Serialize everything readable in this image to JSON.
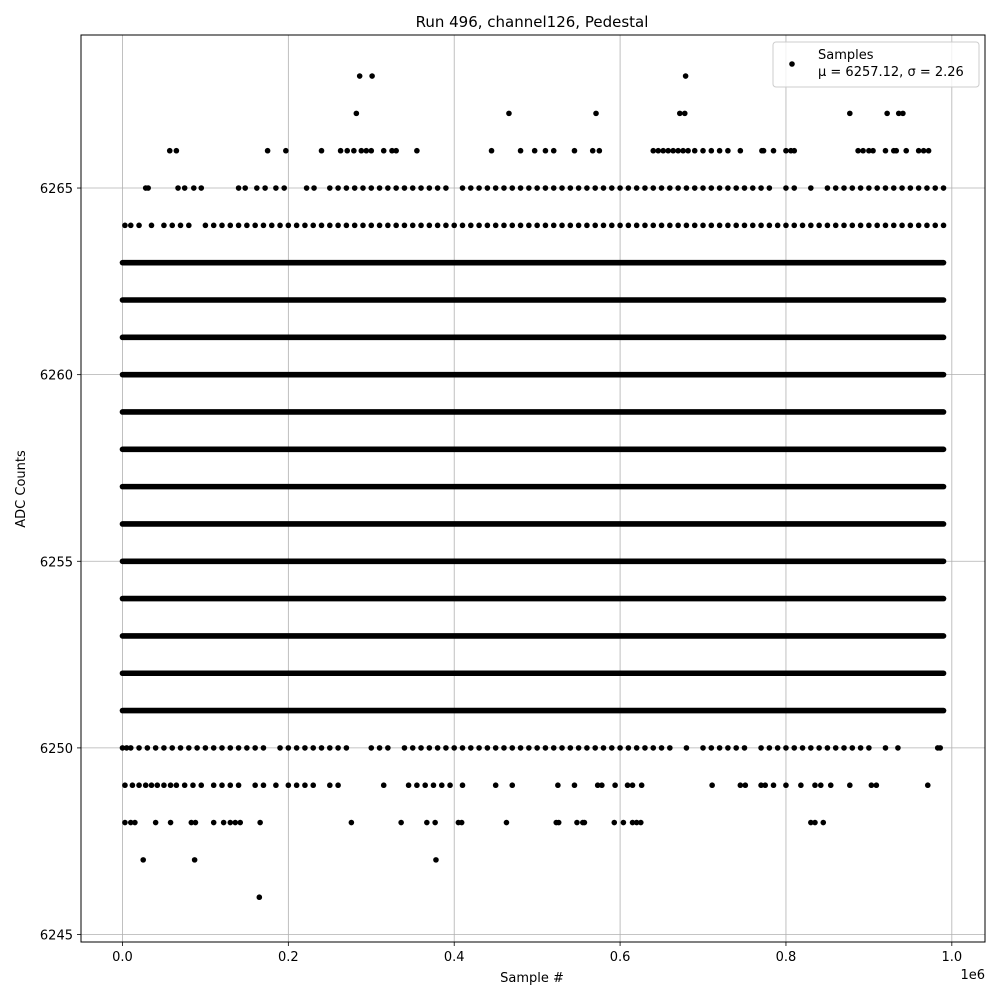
{
  "chart_data": {
    "type": "scatter",
    "title": "Run 496, channel126, Pedestal",
    "xlabel": "Sample #",
    "ylabel": "ADC Counts",
    "x_offset_label": "1e6",
    "xlim": [
      -0.05,
      1.04
    ],
    "ylim": [
      6244.8,
      6269.1
    ],
    "x_ticks": [
      0.0,
      0.2,
      0.4,
      0.6,
      0.8,
      1.0
    ],
    "x_tick_labels": [
      "0.0",
      "0.2",
      "0.4",
      "0.6",
      "0.8",
      "1.0"
    ],
    "y_ticks": [
      6245,
      6250,
      6255,
      6260,
      6265
    ],
    "y_tick_labels": [
      "6245",
      "6250",
      "6255",
      "6260",
      "6265"
    ],
    "grid": true,
    "legend": {
      "placement": "top-right",
      "label": "Samples",
      "stats": "μ = 6257.12, σ = 2.26"
    },
    "marker_color": "#000000",
    "dense_levels": {
      "x_range": [
        0.0,
        0.99
      ],
      "y_values": [
        6251,
        6252,
        6253,
        6254,
        6255,
        6256,
        6257,
        6258,
        6259,
        6260,
        6261,
        6262,
        6263
      ]
    },
    "sparse_levels": [
      {
        "y": 6264,
        "x": [
          0.003,
          0.01,
          0.02,
          0.035,
          0.05,
          0.06,
          0.07,
          0.08,
          0.1,
          0.11,
          0.12,
          0.13,
          0.14,
          0.15,
          0.16,
          0.17,
          0.18,
          0.19,
          0.2,
          0.21,
          0.22,
          0.23,
          0.24,
          0.25,
          0.26,
          0.27,
          0.28,
          0.29,
          0.3,
          0.31,
          0.32,
          0.33,
          0.34,
          0.35,
          0.36,
          0.37,
          0.38,
          0.39,
          0.4,
          0.41,
          0.42,
          0.43,
          0.44,
          0.45,
          0.46,
          0.47,
          0.48,
          0.49,
          0.5,
          0.51,
          0.52,
          0.53,
          0.54,
          0.55,
          0.56,
          0.57,
          0.58,
          0.59,
          0.6,
          0.61,
          0.62,
          0.63,
          0.64,
          0.65,
          0.66,
          0.67,
          0.68,
          0.69,
          0.7,
          0.71,
          0.72,
          0.73,
          0.74,
          0.75,
          0.76,
          0.77,
          0.78,
          0.79,
          0.8,
          0.81,
          0.82,
          0.83,
          0.84,
          0.85,
          0.86,
          0.87,
          0.88,
          0.89,
          0.9,
          0.91,
          0.92,
          0.93,
          0.94,
          0.95,
          0.96,
          0.97,
          0.98,
          0.99
        ]
      },
      {
        "y": 6265,
        "x": [
          0.028,
          0.031,
          0.067,
          0.075,
          0.086,
          0.095,
          0.14,
          0.148,
          0.162,
          0.172,
          0.185,
          0.195,
          0.222,
          0.231,
          0.25,
          0.26,
          0.27,
          0.28,
          0.29,
          0.3,
          0.31,
          0.32,
          0.33,
          0.34,
          0.35,
          0.36,
          0.37,
          0.38,
          0.39,
          0.41,
          0.42,
          0.43,
          0.44,
          0.45,
          0.46,
          0.47,
          0.48,
          0.49,
          0.5,
          0.51,
          0.52,
          0.53,
          0.54,
          0.55,
          0.56,
          0.57,
          0.58,
          0.59,
          0.6,
          0.61,
          0.62,
          0.63,
          0.64,
          0.65,
          0.66,
          0.67,
          0.68,
          0.69,
          0.7,
          0.71,
          0.72,
          0.73,
          0.74,
          0.75,
          0.76,
          0.77,
          0.78,
          0.8,
          0.81,
          0.83,
          0.85,
          0.86,
          0.87,
          0.88,
          0.89,
          0.9,
          0.91,
          0.92,
          0.93,
          0.94,
          0.95,
          0.96,
          0.97,
          0.98,
          0.99
        ]
      },
      {
        "y": 6266,
        "x": [
          0.057,
          0.065,
          0.175,
          0.197,
          0.24,
          0.263,
          0.271,
          0.279,
          0.288,
          0.294,
          0.3,
          0.315,
          0.325,
          0.33,
          0.355,
          0.445,
          0.48,
          0.497,
          0.51,
          0.52,
          0.545,
          0.567,
          0.575,
          0.64,
          0.646,
          0.652,
          0.658,
          0.664,
          0.67,
          0.676,
          0.682,
          0.69,
          0.7,
          0.71,
          0.72,
          0.73,
          0.745,
          0.771,
          0.773,
          0.785,
          0.8,
          0.806,
          0.81,
          0.887,
          0.893,
          0.9,
          0.905,
          0.92,
          0.93,
          0.933,
          0.945,
          0.96,
          0.966,
          0.972
        ]
      },
      {
        "y": 6267,
        "x": [
          0.282,
          0.466,
          0.571,
          0.672,
          0.678,
          0.877,
          0.922,
          0.936,
          0.941
        ]
      },
      {
        "y": 6268,
        "x": [
          0.286,
          0.301,
          0.679
        ]
      },
      {
        "y": 6250,
        "x": [
          0.0,
          0.005,
          0.01,
          0.02,
          0.03,
          0.04,
          0.05,
          0.06,
          0.07,
          0.08,
          0.09,
          0.1,
          0.11,
          0.12,
          0.13,
          0.14,
          0.15,
          0.16,
          0.17,
          0.19,
          0.2,
          0.21,
          0.22,
          0.23,
          0.24,
          0.25,
          0.26,
          0.27,
          0.3,
          0.31,
          0.32,
          0.34,
          0.35,
          0.36,
          0.37,
          0.38,
          0.39,
          0.4,
          0.41,
          0.42,
          0.43,
          0.44,
          0.45,
          0.46,
          0.47,
          0.48,
          0.49,
          0.5,
          0.51,
          0.52,
          0.53,
          0.54,
          0.55,
          0.56,
          0.57,
          0.58,
          0.59,
          0.6,
          0.61,
          0.62,
          0.63,
          0.64,
          0.65,
          0.66,
          0.68,
          0.7,
          0.71,
          0.72,
          0.73,
          0.74,
          0.75,
          0.77,
          0.78,
          0.79,
          0.8,
          0.81,
          0.82,
          0.83,
          0.84,
          0.85,
          0.86,
          0.87,
          0.88,
          0.89,
          0.9,
          0.92,
          0.935,
          0.983,
          0.986
        ]
      },
      {
        "y": 6249,
        "x": [
          0.003,
          0.012,
          0.02,
          0.028,
          0.035,
          0.042,
          0.05,
          0.058,
          0.065,
          0.075,
          0.085,
          0.095,
          0.11,
          0.12,
          0.13,
          0.14,
          0.16,
          0.17,
          0.185,
          0.2,
          0.21,
          0.22,
          0.23,
          0.25,
          0.26,
          0.315,
          0.345,
          0.355,
          0.365,
          0.375,
          0.385,
          0.395,
          0.41,
          0.45,
          0.47,
          0.525,
          0.545,
          0.573,
          0.578,
          0.594,
          0.609,
          0.615,
          0.626,
          0.711,
          0.745,
          0.751,
          0.77,
          0.775,
          0.785,
          0.8,
          0.818,
          0.835,
          0.842,
          0.854,
          0.877,
          0.903,
          0.909,
          0.971
        ]
      },
      {
        "y": 6248,
        "x": [
          0.003,
          0.01,
          0.015,
          0.04,
          0.058,
          0.083,
          0.088,
          0.11,
          0.122,
          0.13,
          0.136,
          0.142,
          0.166,
          0.276,
          0.336,
          0.367,
          0.377,
          0.405,
          0.409,
          0.463,
          0.523,
          0.526,
          0.548,
          0.555,
          0.557,
          0.593,
          0.604,
          0.615,
          0.62,
          0.625,
          0.83,
          0.835,
          0.845
        ]
      },
      {
        "y": 6247,
        "x": [
          0.025,
          0.087,
          0.378
        ]
      },
      {
        "y": 6246,
        "x": [
          0.165
        ]
      }
    ]
  }
}
